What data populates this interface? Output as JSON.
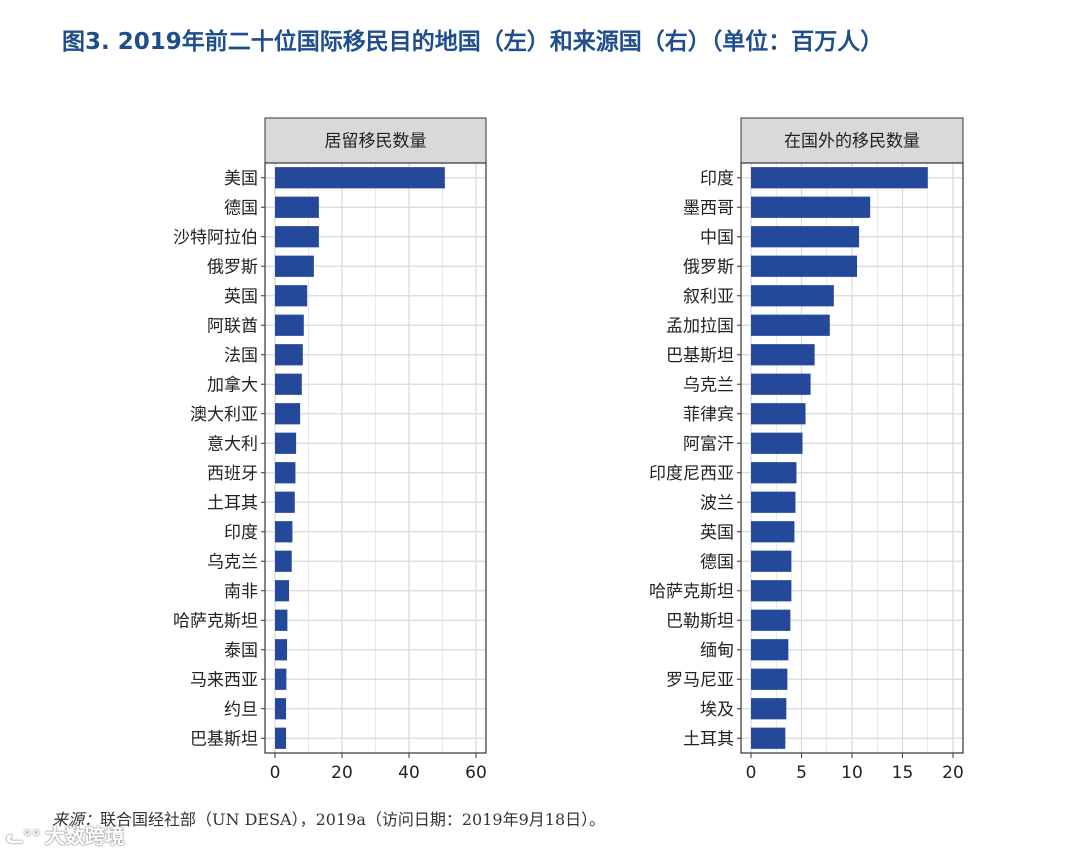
{
  "title": "图3. 2019年前二十位国际移民目的地国（左）和来源国（右）（单位：百万人）",
  "source": {
    "label": "来源：",
    "text": "联合国经社部（UN DESA），2019a（访问日期：2019年9月18日）。"
  },
  "watermark": "大数跨境",
  "colors": {
    "bar": "#24499a",
    "grid": "#d9d9d9",
    "strip": "#d9d9d9",
    "title": "#1f4e8c"
  },
  "chart_data": [
    {
      "type": "bar",
      "orientation": "horizontal",
      "panel": "left",
      "title": "居留移民数量",
      "categories": [
        "美国",
        "德国",
        "沙特阿拉伯",
        "俄罗斯",
        "英国",
        "阿联酋",
        "法国",
        "加拿大",
        "澳大利亚",
        "意大利",
        "西班牙",
        "土耳其",
        "印度",
        "乌克兰",
        "南非",
        "哈萨克斯坦",
        "泰国",
        "马来西亚",
        "约旦",
        "巴基斯坦"
      ],
      "values": [
        50.7,
        13.1,
        13.1,
        11.6,
        9.6,
        8.6,
        8.3,
        8.0,
        7.5,
        6.3,
        6.1,
        5.9,
        5.2,
        5.0,
        4.2,
        3.7,
        3.6,
        3.4,
        3.3,
        3.3
      ],
      "xlim": [
        0,
        60
      ],
      "xticks": [
        0,
        20,
        40,
        60
      ],
      "xlabel": "",
      "ylabel": "",
      "grid": true
    },
    {
      "type": "bar",
      "orientation": "horizontal",
      "panel": "right",
      "title": "在国外的移民数量",
      "categories": [
        "印度",
        "墨西哥",
        "中国",
        "俄罗斯",
        "叙利亚",
        "孟加拉国",
        "巴基斯坦",
        "乌克兰",
        "菲律宾",
        "阿富汗",
        "印度尼西亚",
        "波兰",
        "英国",
        "德国",
        "哈萨克斯坦",
        "巴勒斯坦",
        "缅甸",
        "罗马尼亚",
        "埃及",
        "土耳其"
      ],
      "values": [
        17.5,
        11.8,
        10.7,
        10.5,
        8.2,
        7.8,
        6.3,
        5.9,
        5.4,
        5.1,
        4.5,
        4.4,
        4.3,
        4.0,
        4.0,
        3.9,
        3.7,
        3.6,
        3.5,
        3.4
      ],
      "xlim": [
        0,
        20
      ],
      "xticks": [
        0,
        5,
        10,
        15,
        20
      ],
      "xlabel": "",
      "ylabel": "",
      "grid": true
    }
  ]
}
